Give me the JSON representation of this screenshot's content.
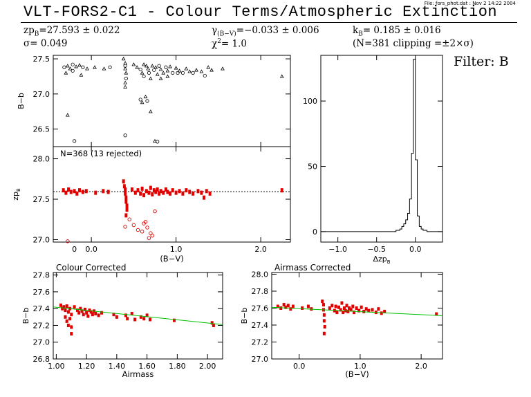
{
  "header": {
    "file_note": "File: fors_phot.dat : Nov  2 14:22 2004",
    "title": "VLT-FORS2-C1 - Colour Terms/Atmospheric Extinction",
    "zp": "zp",
    "zp_sub": "B",
    "zp_val": "=27.593 ± 0.022",
    "sigma": "σ=  0.049",
    "gamma": "γ",
    "gamma_sub": "(B−V)",
    "gamma_val": "=−0.033 ± 0.006",
    "chi": "χ",
    "chi_sup": "2",
    "chi_val": "=   1.0",
    "k": "k",
    "k_sub": "B",
    "k_val": "=  0.185 ± 0.016",
    "n_note": "(N=381 clipping =±2×σ)",
    "filter": "Filter: B"
  },
  "chart_data": [
    {
      "id": "colour-raw",
      "type": "scatter",
      "ylabel": "B−b",
      "xlim": [
        -0.45,
        2.35
      ],
      "ylim": [
        26.25,
        27.55
      ],
      "yticks": [
        26.5,
        27.0,
        27.5
      ],
      "ytick_labels": [
        "26.5",
        "27.0",
        "27.5"
      ],
      "xticks": [
        0.0,
        1.0,
        2.0
      ],
      "points": [
        [
          -0.32,
          27.38
        ],
        [
          -0.28,
          27.4
        ],
        [
          -0.25,
          27.36
        ],
        [
          -0.22,
          27.42
        ],
        [
          -0.18,
          27.39
        ],
        [
          -0.14,
          27.41
        ],
        [
          -0.1,
          27.38
        ],
        [
          -0.05,
          27.36
        ],
        [
          -0.3,
          27.3
        ],
        [
          -0.22,
          27.33
        ],
        [
          -0.12,
          27.27
        ],
        [
          -0.28,
          26.7
        ],
        [
          -0.2,
          26.33
        ],
        [
          0.04,
          27.38
        ],
        [
          0.15,
          27.36
        ],
        [
          0.22,
          27.38
        ],
        [
          0.38,
          27.5
        ],
        [
          0.4,
          27.44
        ],
        [
          0.4,
          27.4
        ],
        [
          0.4,
          27.36
        ],
        [
          0.41,
          27.3
        ],
        [
          0.41,
          27.22
        ],
        [
          0.4,
          27.16
        ],
        [
          0.4,
          27.1
        ],
        [
          0.4,
          26.41
        ],
        [
          0.5,
          27.42
        ],
        [
          0.54,
          27.38
        ],
        [
          0.58,
          27.35
        ],
        [
          0.6,
          27.3
        ],
        [
          0.62,
          27.42
        ],
        [
          0.62,
          27.25
        ],
        [
          0.65,
          27.4
        ],
        [
          0.67,
          27.36
        ],
        [
          0.68,
          27.3
        ],
        [
          0.7,
          27.22
        ],
        [
          0.72,
          27.4
        ],
        [
          0.74,
          27.34
        ],
        [
          0.76,
          27.38
        ],
        [
          0.78,
          27.28
        ],
        [
          0.8,
          27.4
        ],
        [
          0.82,
          27.35
        ],
        [
          0.85,
          27.3
        ],
        [
          0.88,
          27.38
        ],
        [
          0.9,
          27.33
        ],
        [
          0.93,
          27.39
        ],
        [
          0.96,
          27.3
        ],
        [
          1.0,
          27.37
        ],
        [
          1.04,
          27.33
        ],
        [
          1.08,
          27.3
        ],
        [
          1.12,
          27.36
        ],
        [
          1.16,
          27.32
        ],
        [
          1.2,
          27.3
        ],
        [
          1.24,
          27.34
        ],
        [
          1.3,
          27.32
        ],
        [
          1.34,
          27.26
        ],
        [
          1.38,
          27.38
        ],
        [
          1.42,
          27.34
        ],
        [
          0.58,
          26.92
        ],
        [
          0.6,
          26.88
        ],
        [
          0.64,
          26.96
        ],
        [
          0.66,
          26.9
        ],
        [
          0.7,
          26.75
        ],
        [
          0.75,
          26.33
        ],
        [
          0.78,
          26.32
        ],
        [
          0.82,
          27.22
        ],
        [
          0.9,
          27.25
        ],
        [
          1.02,
          27.3
        ],
        [
          1.55,
          27.36
        ],
        [
          2.25,
          27.25
        ]
      ]
    },
    {
      "id": "zp-residual",
      "type": "scatter",
      "ylabel": "zp",
      "ylabel_sub": "B",
      "xlabel": "(B−V)",
      "annotation": "N=368 (13 rejected)",
      "xlim": [
        -0.45,
        2.35
      ],
      "ylim": [
        26.97,
        28.15
      ],
      "yticks": [
        27.0,
        27.5,
        28.0
      ],
      "ytick_labels": [
        "27.0",
        "27.5",
        "28.0"
      ],
      "xticks": [
        0.0,
        1.0,
        2.0
      ],
      "xtick_labels": [
        "0",
        "0.0",
        "1.0",
        "2.0"
      ],
      "xtick_values": [
        -0.2,
        0.0,
        1.0,
        2.0
      ],
      "zp_line": 27.593,
      "points": [
        [
          -0.33,
          27.61
        ],
        [
          -0.3,
          27.58
        ],
        [
          -0.27,
          27.62
        ],
        [
          -0.24,
          27.59
        ],
        [
          -0.2,
          27.6
        ],
        [
          -0.17,
          27.57
        ],
        [
          -0.14,
          27.61
        ],
        [
          -0.1,
          27.59
        ],
        [
          -0.06,
          27.6
        ],
        [
          0.05,
          27.58
        ],
        [
          0.14,
          27.6
        ],
        [
          0.2,
          27.59
        ],
        [
          0.38,
          27.72
        ],
        [
          0.39,
          27.66
        ],
        [
          0.4,
          27.62
        ],
        [
          0.4,
          27.57
        ],
        [
          0.41,
          27.52
        ],
        [
          0.41,
          27.47
        ],
        [
          0.42,
          27.42
        ],
        [
          0.42,
          27.37
        ],
        [
          0.41,
          27.3
        ],
        [
          0.48,
          27.62
        ],
        [
          0.52,
          27.58
        ],
        [
          0.55,
          27.61
        ],
        [
          0.58,
          27.57
        ],
        [
          0.6,
          27.63
        ],
        [
          0.62,
          27.55
        ],
        [
          0.65,
          27.6
        ],
        [
          0.68,
          27.58
        ],
        [
          0.7,
          27.64
        ],
        [
          0.72,
          27.56
        ],
        [
          0.74,
          27.61
        ],
        [
          0.76,
          27.59
        ],
        [
          0.78,
          27.62
        ],
        [
          0.8,
          27.57
        ],
        [
          0.82,
          27.6
        ],
        [
          0.85,
          27.58
        ],
        [
          0.88,
          27.62
        ],
        [
          0.9,
          27.59
        ],
        [
          0.93,
          27.57
        ],
        [
          0.96,
          27.61
        ],
        [
          1.0,
          27.58
        ],
        [
          1.04,
          27.6
        ],
        [
          1.08,
          27.57
        ],
        [
          1.12,
          27.61
        ],
        [
          1.16,
          27.59
        ],
        [
          1.2,
          27.57
        ],
        [
          1.26,
          27.6
        ],
        [
          1.3,
          27.58
        ],
        [
          1.33,
          27.52
        ],
        [
          1.36,
          27.6
        ],
        [
          1.4,
          27.57
        ],
        [
          2.25,
          27.61
        ]
      ],
      "rejected": [
        [
          0.4,
          27.16
        ],
        [
          0.55,
          27.12
        ],
        [
          0.6,
          27.1
        ],
        [
          0.62,
          27.2
        ],
        [
          0.66,
          27.15
        ],
        [
          0.68,
          27.02
        ],
        [
          0.7,
          27.08
        ],
        [
          0.72,
          27.05
        ],
        [
          0.5,
          27.18
        ],
        [
          0.45,
          27.25
        ],
        [
          0.75,
          27.35
        ],
        [
          -0.28,
          26.98
        ],
        [
          0.64,
          27.22
        ]
      ]
    },
    {
      "id": "histogram",
      "type": "bar",
      "xlabel": "Δzp",
      "xlabel_sub": "B",
      "xlim": [
        -1.22,
        0.35
      ],
      "ylim": [
        -8,
        135
      ],
      "yticks": [
        0,
        50,
        100
      ],
      "ytick_labels": [
        "0",
        "50",
        "100"
      ],
      "xticks": [
        -1.0,
        -0.5,
        0.0
      ],
      "xtick_labels": [
        "−1.0",
        "−0.5",
        "0.0"
      ],
      "bin_width": 0.025,
      "bins_start": -0.25,
      "counts": [
        1,
        1,
        2,
        4,
        6,
        9,
        14,
        25,
        60,
        132,
        55,
        12,
        4,
        2,
        1,
        1
      ]
    },
    {
      "id": "colour-corrected",
      "type": "scatter",
      "title": "Colour Corrected",
      "ylabel": "B−b",
      "xlabel": "Airmass",
      "xlim": [
        0.98,
        2.1
      ],
      "ylim": [
        26.8,
        27.83
      ],
      "yticks": [
        26.8,
        27.0,
        27.2,
        27.4,
        27.6,
        27.8
      ],
      "ytick_labels": [
        "26.8",
        "27.0",
        "27.2",
        "27.4",
        "27.6",
        "27.8"
      ],
      "xticks": [
        1.0,
        1.2,
        1.4,
        1.6,
        1.8,
        2.0
      ],
      "xtick_labels": [
        "1.00",
        "1.20",
        "1.40",
        "1.60",
        "1.80",
        "2.00"
      ],
      "fit": [
        [
          0.98,
          27.42
        ],
        [
          2.1,
          27.21
        ]
      ],
      "points": [
        [
          1.03,
          27.44
        ],
        [
          1.04,
          27.4
        ],
        [
          1.05,
          27.42
        ],
        [
          1.06,
          27.38
        ],
        [
          1.07,
          27.43
        ],
        [
          1.08,
          27.36
        ],
        [
          1.09,
          27.4
        ],
        [
          1.1,
          27.33
        ],
        [
          1.06,
          27.3
        ],
        [
          1.07,
          27.25
        ],
        [
          1.08,
          27.2
        ],
        [
          1.09,
          27.28
        ],
        [
          1.1,
          27.18
        ],
        [
          1.1,
          27.1
        ],
        [
          1.12,
          27.42
        ],
        [
          1.14,
          27.38
        ],
        [
          1.15,
          27.35
        ],
        [
          1.16,
          27.4
        ],
        [
          1.17,
          27.37
        ],
        [
          1.18,
          27.33
        ],
        [
          1.19,
          27.39
        ],
        [
          1.2,
          27.35
        ],
        [
          1.21,
          27.31
        ],
        [
          1.22,
          27.38
        ],
        [
          1.23,
          27.36
        ],
        [
          1.24,
          27.33
        ],
        [
          1.25,
          27.37
        ],
        [
          1.26,
          27.34
        ],
        [
          1.28,
          27.32
        ],
        [
          1.3,
          27.35
        ],
        [
          1.38,
          27.33
        ],
        [
          1.4,
          27.3
        ],
        [
          1.46,
          27.32
        ],
        [
          1.47,
          27.28
        ],
        [
          1.5,
          27.34
        ],
        [
          1.52,
          27.27
        ],
        [
          1.56,
          27.3
        ],
        [
          1.58,
          27.28
        ],
        [
          1.6,
          27.32
        ],
        [
          1.62,
          27.27
        ],
        [
          1.78,
          27.26
        ],
        [
          2.03,
          27.23
        ],
        [
          2.04,
          27.2
        ]
      ]
    },
    {
      "id": "airmass-corrected",
      "type": "scatter",
      "title": "Airmass Corrected",
      "ylabel": "B−b",
      "xlabel": "(B−V)",
      "xlim": [
        -0.45,
        2.35
      ],
      "ylim": [
        27.0,
        28.02
      ],
      "yticks": [
        27.0,
        27.2,
        27.4,
        27.6,
        27.8,
        28.0
      ],
      "ytick_labels": [
        "27.0",
        "27.2",
        "27.4",
        "27.6",
        "27.8",
        "28.0"
      ],
      "xticks": [
        0.0,
        1.0,
        2.0
      ],
      "xtick_labels": [
        "0.0",
        "1.0",
        "2.0"
      ],
      "fit": [
        [
          -0.45,
          27.61
        ],
        [
          2.35,
          27.51
        ]
      ],
      "points": [
        [
          -0.35,
          27.62
        ],
        [
          -0.3,
          27.6
        ],
        [
          -0.25,
          27.64
        ],
        [
          -0.22,
          27.61
        ],
        [
          -0.18,
          27.63
        ],
        [
          -0.14,
          27.59
        ],
        [
          -0.1,
          27.62
        ],
        [
          0.05,
          27.6
        ],
        [
          0.15,
          27.62
        ],
        [
          0.2,
          27.59
        ],
        [
          0.38,
          27.68
        ],
        [
          0.4,
          27.64
        ],
        [
          0.4,
          27.58
        ],
        [
          0.41,
          27.52
        ],
        [
          0.41,
          27.45
        ],
        [
          0.42,
          27.38
        ],
        [
          0.41,
          27.3
        ],
        [
          0.5,
          27.6
        ],
        [
          0.54,
          27.63
        ],
        [
          0.58,
          27.57
        ],
        [
          0.6,
          27.62
        ],
        [
          0.62,
          27.55
        ],
        [
          0.65,
          27.61
        ],
        [
          0.68,
          27.58
        ],
        [
          0.7,
          27.66
        ],
        [
          0.72,
          27.55
        ],
        [
          0.74,
          27.6
        ],
        [
          0.76,
          27.57
        ],
        [
          0.78,
          27.63
        ],
        [
          0.8,
          27.56
        ],
        [
          0.82,
          27.6
        ],
        [
          0.85,
          27.58
        ],
        [
          0.88,
          27.62
        ],
        [
          0.9,
          27.55
        ],
        [
          0.94,
          27.6
        ],
        [
          0.98,
          27.57
        ],
        [
          1.02,
          27.61
        ],
        [
          1.06,
          27.56
        ],
        [
          1.1,
          27.59
        ],
        [
          1.14,
          27.57
        ],
        [
          1.2,
          27.58
        ],
        [
          1.26,
          27.55
        ],
        [
          1.3,
          27.59
        ],
        [
          1.35,
          27.54
        ],
        [
          1.4,
          27.56
        ],
        [
          2.25,
          27.53
        ]
      ]
    }
  ]
}
